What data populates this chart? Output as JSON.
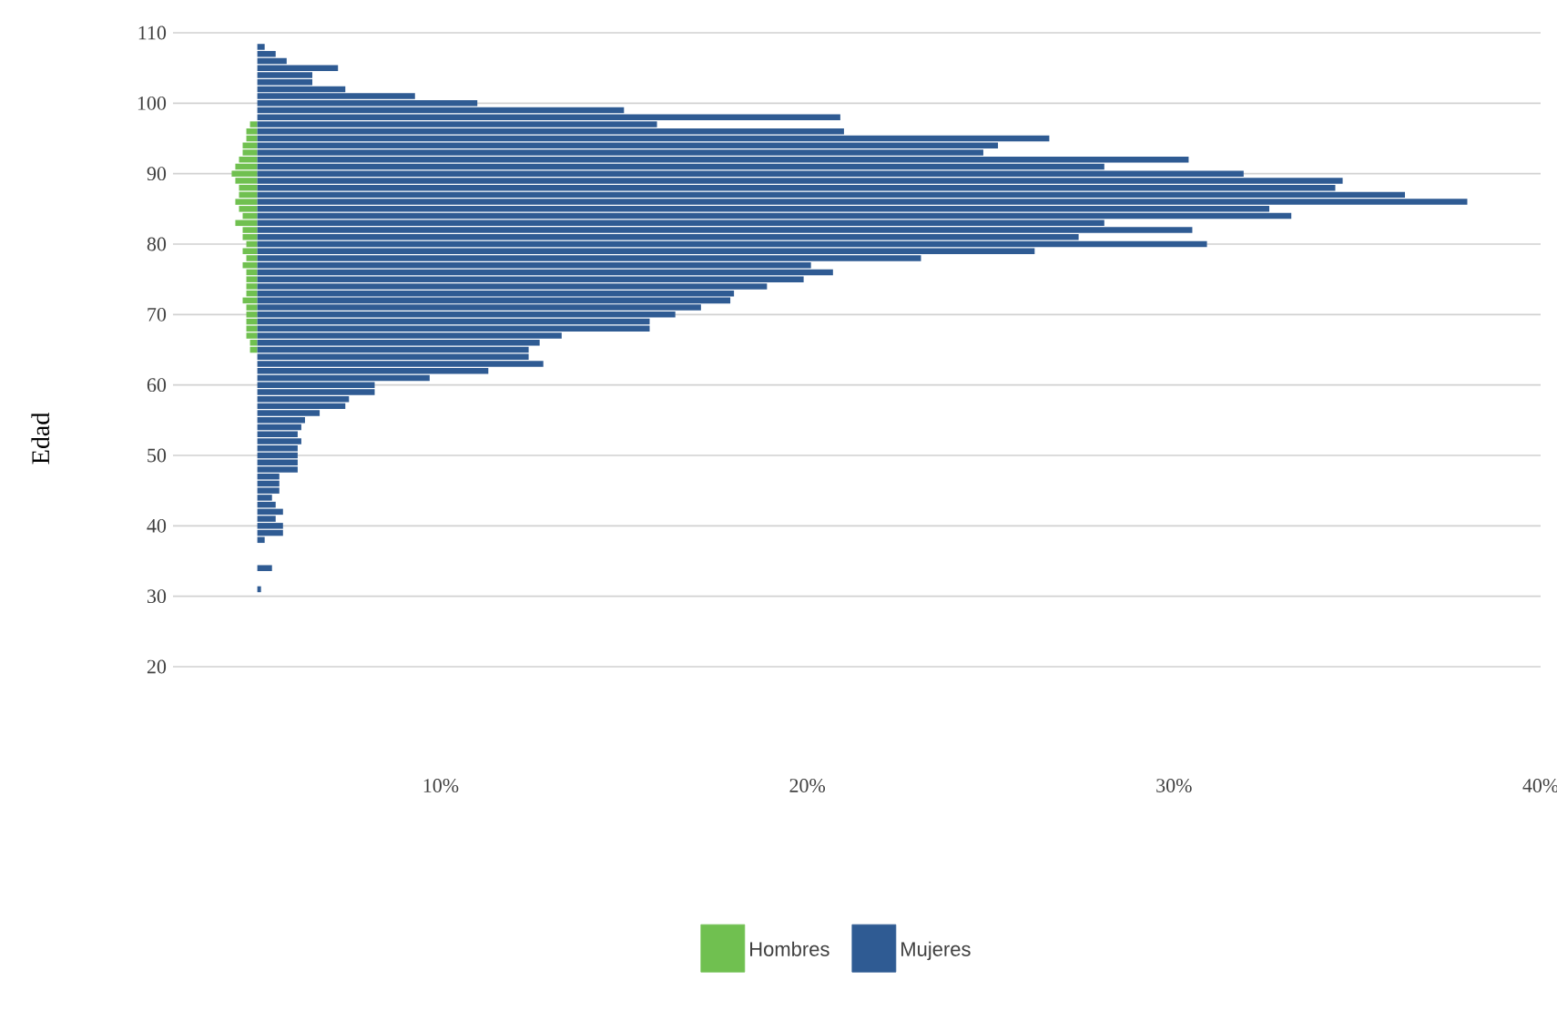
{
  "chart_data": {
    "type": "bar",
    "orientation": "horizontal",
    "ylabel": "Edad",
    "x": [
      31,
      32,
      33,
      34,
      35,
      36,
      37,
      38,
      39,
      40,
      41,
      42,
      43,
      44,
      45,
      46,
      47,
      48,
      49,
      50,
      51,
      52,
      53,
      54,
      55,
      56,
      57,
      58,
      59,
      60,
      61,
      62,
      63,
      64,
      65,
      66,
      67,
      68,
      69,
      70,
      71,
      72,
      73,
      74,
      75,
      76,
      77,
      78,
      79,
      80,
      81,
      82,
      83,
      84,
      85,
      86,
      87,
      88,
      89,
      90,
      91,
      92,
      93,
      94,
      95,
      96,
      97,
      98,
      99,
      100,
      101,
      102,
      103,
      104,
      105,
      106,
      107,
      108
    ],
    "series": [
      {
        "name": "Hombres",
        "color": "#70c050",
        "base": [
          null,
          null,
          null,
          null,
          null,
          null,
          null,
          null,
          null,
          null,
          null,
          null,
          null,
          null,
          null,
          null,
          null,
          null,
          null,
          null,
          null,
          null,
          null,
          null,
          null,
          null,
          null,
          null,
          null,
          null,
          null,
          null,
          null,
          null,
          5,
          5,
          5,
          5,
          5,
          5,
          5,
          5,
          5,
          5,
          5,
          5,
          5,
          5,
          5,
          5,
          5,
          5,
          5,
          5,
          5,
          5,
          5,
          5,
          5,
          5,
          5,
          5,
          5,
          5,
          5,
          5,
          5,
          null,
          null,
          null,
          null,
          null,
          null,
          null,
          null,
          null,
          null,
          null
        ],
        "values": [
          null,
          null,
          null,
          null,
          null,
          null,
          null,
          null,
          null,
          null,
          null,
          null,
          null,
          null,
          null,
          null,
          null,
          null,
          null,
          null,
          null,
          null,
          null,
          null,
          null,
          null,
          null,
          null,
          null,
          null,
          null,
          null,
          null,
          null,
          -0.2,
          -0.2,
          -0.3,
          -0.3,
          -0.3,
          -0.3,
          -0.3,
          -0.4,
          -0.3,
          -0.3,
          -0.3,
          -0.3,
          -0.4,
          -0.3,
          -0.4,
          -0.3,
          -0.4,
          -0.4,
          -0.6,
          -0.4,
          -0.5,
          -0.6,
          -0.5,
          -0.5,
          -0.6,
          -0.7,
          -0.6,
          -0.5,
          -0.4,
          -0.4,
          -0.3,
          -0.3,
          -0.2,
          null,
          null,
          null,
          null,
          null,
          null,
          null,
          null,
          null,
          null,
          null
        ]
      },
      {
        "name": "Mujeres",
        "color": "#2f5b93",
        "base": [
          5,
          null,
          null,
          5,
          null,
          null,
          null,
          5,
          5,
          5,
          5,
          5,
          5,
          5,
          5,
          5,
          5,
          5,
          5,
          5,
          5,
          5,
          5,
          5,
          5,
          5,
          5,
          5,
          5,
          5,
          5,
          5,
          5,
          5,
          5,
          5,
          5,
          5,
          5,
          5,
          5,
          5,
          5,
          5,
          5,
          5,
          5,
          5,
          5,
          5,
          5,
          5,
          5,
          5,
          5,
          5,
          5,
          5,
          5,
          5,
          5,
          5,
          5,
          5,
          5,
          5,
          5,
          5,
          5,
          5,
          5,
          5,
          5,
          5,
          5,
          5,
          5,
          5
        ],
        "values": [
          0.1,
          null,
          null,
          0.4,
          null,
          null,
          null,
          0.2,
          0.7,
          0.7,
          0.5,
          0.7,
          0.5,
          0.4,
          0.6,
          0.6,
          0.6,
          1.1,
          1.1,
          1.1,
          1.1,
          1.2,
          1.1,
          1.2,
          1.3,
          1.7,
          2.4,
          2.5,
          3.2,
          3.2,
          4.7,
          6.3,
          7.8,
          7.4,
          7.4,
          7.7,
          8.3,
          10.7,
          10.7,
          11.4,
          12.1,
          12.9,
          13.0,
          13.9,
          14.9,
          15.7,
          15.1,
          18.1,
          21.2,
          25.9,
          22.4,
          25.5,
          23.1,
          28.2,
          27.6,
          33.0,
          31.3,
          29.4,
          29.6,
          26.9,
          23.1,
          25.4,
          19.8,
          20.2,
          21.6,
          16.0,
          10.9,
          15.9,
          10.0,
          6.0,
          4.3,
          2.4,
          1.5,
          1.5,
          2.2,
          0.8,
          0.5,
          0.2
        ]
      }
    ],
    "xlim": [
      2.7,
      40
    ],
    "xticks": [
      {
        "value": 10,
        "label": "10%"
      },
      {
        "value": 20,
        "label": "20%"
      },
      {
        "value": 30,
        "label": "30%"
      },
      {
        "value": 40,
        "label": "40%"
      }
    ],
    "ylim": [
      20,
      110
    ],
    "yticks": [
      20,
      30,
      40,
      50,
      60,
      70,
      80,
      90,
      100,
      110
    ],
    "grid": "y",
    "legend": "bottom"
  }
}
